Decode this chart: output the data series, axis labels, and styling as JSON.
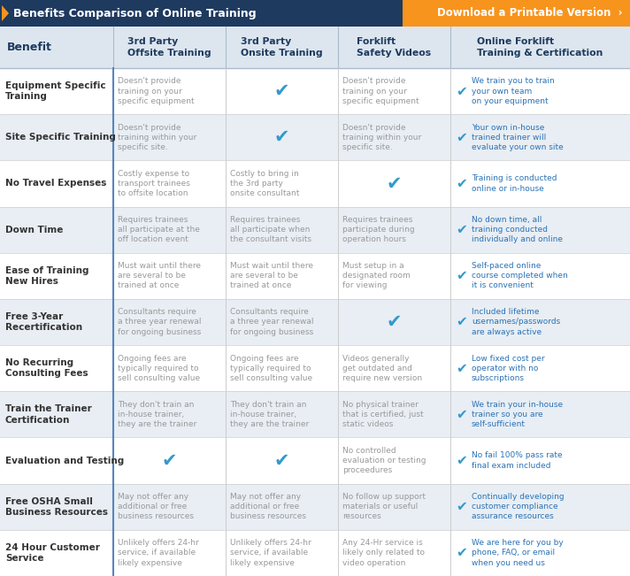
{
  "title_left": "Benefits Comparison of Online Training",
  "title_right": "Download a Printable Version  ›",
  "header_bg_color": "#1e3a5f",
  "orange_color": "#f7941d",
  "col_header_color": "#1e3a5f",
  "row_bg_even": "#ffffff",
  "row_bg_odd": "#e8eef4",
  "col_header_bg": "#dde6ef",
  "check_color": "#3399cc",
  "gray_text_color": "#999999",
  "blue_text_color": "#2a72b5",
  "benefit_text_color": "#333333",
  "divider_color": "#5588bb",
  "columns": [
    "Benefit",
    "3rd Party\nOffsite Training",
    "3rd Party\nOnsite Training",
    "Forklift\nSafety Videos",
    "Online Forklift\nTraining & Certification"
  ],
  "rows": [
    {
      "benefit": "Equipment Specific\nTraining",
      "col1": {
        "type": "text",
        "text": "Doesn't provide\ntraining on your\nspecific equipment"
      },
      "col2": {
        "type": "check"
      },
      "col3": {
        "type": "text",
        "text": "Doesn't provide\ntraining on your\nspecific equipment"
      },
      "col4": {
        "type": "check_text",
        "text": "We train you to train\nyour own team\non your equipment"
      }
    },
    {
      "benefit": "Site Specific Training",
      "col1": {
        "type": "text",
        "text": "Doesn't provide\ntraining within your\nspecific site."
      },
      "col2": {
        "type": "check"
      },
      "col3": {
        "type": "text",
        "text": "Doesn't provide\ntraining within your\nspecific site."
      },
      "col4": {
        "type": "check_text",
        "text": "Your own in-house\ntrained trainer will\nevaluate your own site"
      }
    },
    {
      "benefit": "No Travel Expenses",
      "col1": {
        "type": "text",
        "text": "Costly expense to\ntransport trainees\nto offsite location"
      },
      "col2": {
        "type": "text",
        "text": "Costly to bring in\nthe 3rd party\nonsite consultant"
      },
      "col3": {
        "type": "check"
      },
      "col4": {
        "type": "check_text",
        "text": "Training is conducted\nonline or in-house"
      }
    },
    {
      "benefit": "Down Time",
      "col1": {
        "type": "text",
        "text": "Requires trainees\nall participate at the\noff location event"
      },
      "col2": {
        "type": "text",
        "text": "Requires trainees\nall participate when\nthe consultant visits"
      },
      "col3": {
        "type": "text",
        "text": "Requires trainees\nparticipate during\noperation hours"
      },
      "col4": {
        "type": "check_text",
        "text": "No down time, all\ntraining conducted\nindividually and online"
      }
    },
    {
      "benefit": "Ease of Training\nNew Hires",
      "col1": {
        "type": "text",
        "text": "Must wait until there\nare several to be\ntrained at once"
      },
      "col2": {
        "type": "text",
        "text": "Must wait until there\nare several to be\ntrained at once"
      },
      "col3": {
        "type": "text",
        "text": "Must setup in a\ndesignated room\nfor viewing"
      },
      "col4": {
        "type": "check_text",
        "text": "Self-paced online\ncourse completed when\nit is convenient"
      }
    },
    {
      "benefit": "Free 3-Year\nRecertification",
      "col1": {
        "type": "text",
        "text": "Consultants require\na three year renewal\nfor ongoing business"
      },
      "col2": {
        "type": "text",
        "text": "Consultants require\na three year renewal\nfor ongoing business"
      },
      "col3": {
        "type": "check"
      },
      "col4": {
        "type": "check_text",
        "text": "Included lifetime\nusernames/passwords\nare always active"
      }
    },
    {
      "benefit": "No Recurring\nConsulting Fees",
      "col1": {
        "type": "text",
        "text": "Ongoing fees are\ntypically required to\nsell consulting value"
      },
      "col2": {
        "type": "text",
        "text": "Ongoing fees are\ntypically required to\nsell consulting value"
      },
      "col3": {
        "type": "text",
        "text": "Videos generally\nget outdated and\nrequire new version"
      },
      "col4": {
        "type": "check_text",
        "text": "Low fixed cost per\noperator with no\nsubscriptions"
      }
    },
    {
      "benefit": "Train the Trainer\nCertification",
      "col1": {
        "type": "text",
        "text": "They don't train an\nin-house trainer,\nthey are the trainer"
      },
      "col2": {
        "type": "text",
        "text": "They don't train an\nin-house trainer,\nthey are the trainer"
      },
      "col3": {
        "type": "text",
        "text": "No physical trainer\nthat is certified, just\nstatic videos"
      },
      "col4": {
        "type": "check_text",
        "text": "We train your in-house\ntrainer so you are\nself-sufficient"
      }
    },
    {
      "benefit": "Evaluation and Testing",
      "col1": {
        "type": "check"
      },
      "col2": {
        "type": "check"
      },
      "col3": {
        "type": "text",
        "text": "No controlled\nevaluation or testing\nproceedures"
      },
      "col4": {
        "type": "check_text",
        "text": "No fail 100% pass rate\nfinal exam included"
      }
    },
    {
      "benefit": "Free OSHA Small\nBusiness Resources",
      "col1": {
        "type": "text",
        "text": "May not offer any\nadditional or free\nbusiness resources"
      },
      "col2": {
        "type": "text",
        "text": "May not offer any\nadditional or free\nbusiness resources"
      },
      "col3": {
        "type": "text",
        "text": "No follow up support\nmaterials or useful\nresources"
      },
      "col4": {
        "type": "check_text",
        "text": "Continually developing\ncustomer compliance\nassurance resources"
      }
    },
    {
      "benefit": "24 Hour Customer\nService",
      "col1": {
        "type": "text",
        "text": "Unlikely offers 24-hr\nservice, if available\nlikely expensive"
      },
      "col2": {
        "type": "text",
        "text": "Unlikely offers 24-hr\nservice, if available\nlikely expensive"
      },
      "col3": {
        "type": "text",
        "text": "Any 24-Hr service is\nlikely only related to\nvideo operation"
      },
      "col4": {
        "type": "check_text",
        "text": "We are here for you by\nphone, FAQ, or email\nwhen you need us"
      }
    }
  ]
}
